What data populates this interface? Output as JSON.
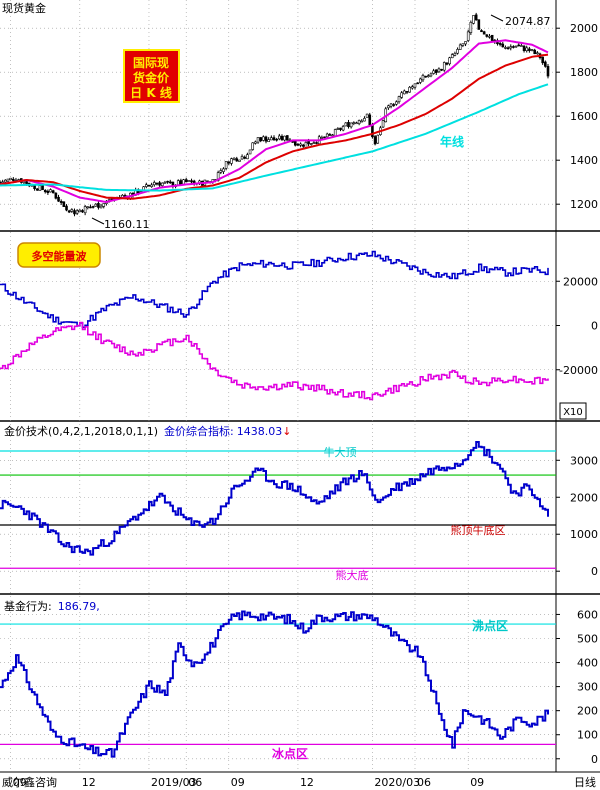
{
  "window": {
    "instrument": "现货黄金",
    "footer_source": "威尔鑫咨询",
    "period": "日线"
  },
  "colors": {
    "background": "#ffffff",
    "grid": "#9a9a9a",
    "candle": "#000000",
    "ma_red": "#dd0000",
    "ma_magenta": "#e000e0",
    "ma_cyan": "#00e0e0",
    "line_blue": "#0000cc",
    "badge_red": "#e10000",
    "badge_yellow": "#ffee00",
    "green_level": "#00c000"
  },
  "panels": {
    "price": {
      "badge": [
        "国际现",
        "货金价",
        "日 K 线"
      ],
      "high_label": "2074.87",
      "low_label": "1160.11",
      "year_line_label": "年线"
    },
    "flow": {
      "badge": "多空能量波",
      "scale_badge": "X10"
    },
    "tech": {
      "title": "金价技术(0,4,2,1,2018,0,1,1)",
      "indicator_label": "金价综合指标:",
      "indicator_value": "1438.03",
      "arrow": "↓",
      "level_labels": {
        "top": "牛大顶",
        "mid": "熊顶牛底区",
        "bottom": "熊大底"
      }
    },
    "fund": {
      "title": "基金行为:",
      "value": "186.79,",
      "level_labels": {
        "top": "沸点区",
        "bottom": "冰点区"
      }
    }
  },
  "chart_data": [
    {
      "type": "candlestick",
      "title": "现货黄金",
      "y_ticks": [
        1200,
        1400,
        1600,
        1800,
        2000
      ],
      "ylim": [
        1110,
        2110
      ],
      "x_ticks": [
        "09",
        "12",
        "2019/03",
        "06",
        "09",
        "12",
        "2020/03",
        "06",
        "09"
      ],
      "annotations": [
        "2074.87",
        "1160.11",
        "年线"
      ],
      "close_anchors": [
        [
          0,
          1300
        ],
        [
          6,
          1320
        ],
        [
          12,
          1285
        ],
        [
          20,
          1250
        ],
        [
          24,
          1190
        ],
        [
          28,
          1165
        ],
        [
          33,
          1185
        ],
        [
          38,
          1200
        ],
        [
          44,
          1230
        ],
        [
          52,
          1255
        ],
        [
          58,
          1300
        ],
        [
          64,
          1290
        ],
        [
          70,
          1300
        ],
        [
          75,
          1295
        ],
        [
          80,
          1310
        ],
        [
          86,
          1400
        ],
        [
          92,
          1420
        ],
        [
          97,
          1500
        ],
        [
          103,
          1495
        ],
        [
          108,
          1500
        ],
        [
          113,
          1470
        ],
        [
          119,
          1490
        ],
        [
          124,
          1510
        ],
        [
          130,
          1560
        ],
        [
          134,
          1580
        ],
        [
          138,
          1600
        ],
        [
          141,
          1470
        ],
        [
          145,
          1620
        ],
        [
          150,
          1690
        ],
        [
          156,
          1750
        ],
        [
          160,
          1780
        ],
        [
          165,
          1810
        ],
        [
          170,
          1870
        ],
        [
          175,
          1940
        ],
        [
          178,
          2050
        ],
        [
          180,
          2000
        ],
        [
          184,
          1960
        ],
        [
          189,
          1910
        ],
        [
          194,
          1920
        ],
        [
          199,
          1900
        ],
        [
          203,
          1870
        ],
        [
          206,
          1790
        ]
      ],
      "moving_averages": [
        {
          "color": "magenta",
          "anchors": [
            [
              0,
              1290
            ],
            [
              10,
              1310
            ],
            [
              20,
              1280
            ],
            [
              30,
              1230
            ],
            [
              40,
              1210
            ],
            [
              50,
              1240
            ],
            [
              60,
              1275
            ],
            [
              70,
              1290
            ],
            [
              80,
              1300
            ],
            [
              90,
              1360
            ],
            [
              100,
              1450
            ],
            [
              110,
              1490
            ],
            [
              120,
              1490
            ],
            [
              130,
              1520
            ],
            [
              140,
              1560
            ],
            [
              150,
              1640
            ],
            [
              160,
              1730
            ],
            [
              170,
              1820
            ],
            [
              180,
              1930
            ],
            [
              190,
              1945
            ],
            [
              200,
              1925
            ],
            [
              206,
              1890
            ]
          ]
        },
        {
          "color": "red",
          "anchors": [
            [
              0,
              1290
            ],
            [
              10,
              1310
            ],
            [
              20,
              1300
            ],
            [
              30,
              1260
            ],
            [
              40,
              1230
            ],
            [
              50,
              1225
            ],
            [
              60,
              1240
            ],
            [
              70,
              1270
            ],
            [
              80,
              1285
            ],
            [
              90,
              1320
            ],
            [
              100,
              1390
            ],
            [
              110,
              1440
            ],
            [
              120,
              1470
            ],
            [
              130,
              1490
            ],
            [
              140,
              1520
            ],
            [
              150,
              1560
            ],
            [
              160,
              1610
            ],
            [
              170,
              1680
            ],
            [
              180,
              1770
            ],
            [
              190,
              1830
            ],
            [
              200,
              1870
            ],
            [
              206,
              1880
            ]
          ]
        },
        {
          "color": "cyan",
          "label": "年线",
          "anchors": [
            [
              0,
              1285
            ],
            [
              20,
              1290
            ],
            [
              40,
              1265
            ],
            [
              60,
              1262
            ],
            [
              80,
              1272
            ],
            [
              100,
              1330
            ],
            [
              120,
              1385
            ],
            [
              140,
              1440
            ],
            [
              160,
              1520
            ],
            [
              180,
              1620
            ],
            [
              195,
              1700
            ],
            [
              206,
              1745
            ]
          ]
        }
      ]
    },
    {
      "type": "line",
      "title": "多空能量波",
      "y_ticks": [
        -20000,
        0,
        20000
      ],
      "ylim": [
        -40000,
        40000
      ],
      "scale_note": "X10",
      "series": [
        {
          "color": "blue",
          "anchors": [
            [
              0,
              18000
            ],
            [
              10,
              10000
            ],
            [
              20,
              3000
            ],
            [
              30,
              0
            ],
            [
              40,
              8000
            ],
            [
              50,
              13000
            ],
            [
              60,
              9000
            ],
            [
              70,
              5000
            ],
            [
              80,
              20000
            ],
            [
              90,
              27000
            ],
            [
              100,
              28000
            ],
            [
              110,
              27000
            ],
            [
              120,
              28500
            ],
            [
              130,
              31000
            ],
            [
              140,
              32000
            ],
            [
              150,
              28000
            ],
            [
              160,
              24000
            ],
            [
              170,
              22000
            ],
            [
              180,
              26000
            ],
            [
              190,
              24000
            ],
            [
              200,
              25000
            ],
            [
              206,
              24500
            ]
          ]
        },
        {
          "color": "magenta",
          "anchors": [
            [
              0,
              -20000
            ],
            [
              10,
              -10000
            ],
            [
              20,
              -3000
            ],
            [
              30,
              0
            ],
            [
              40,
              -8000
            ],
            [
              50,
              -13000
            ],
            [
              60,
              -9000
            ],
            [
              70,
              -5000
            ],
            [
              80,
              -20000
            ],
            [
              90,
              -27000
            ],
            [
              100,
              -28000
            ],
            [
              110,
              -27000
            ],
            [
              120,
              -28500
            ],
            [
              130,
              -31000
            ],
            [
              140,
              -32000
            ],
            [
              150,
              -28000
            ],
            [
              160,
              -24000
            ],
            [
              170,
              -22000
            ],
            [
              180,
              -26000
            ],
            [
              190,
              -24000
            ],
            [
              200,
              -25000
            ],
            [
              206,
              -24500
            ]
          ]
        }
      ]
    },
    {
      "type": "line",
      "title": "金价技术(0,4,2,1,2018,0,1,1)",
      "y_ticks": [
        0,
        1000,
        2000,
        3000
      ],
      "ylim": [
        -400,
        3900
      ],
      "levels": [
        {
          "name": "牛大顶",
          "value": 3250,
          "color": "cyan"
        },
        {
          "name": "green",
          "value": 2600,
          "color": "green"
        },
        {
          "name": "熊顶牛底区",
          "value": 1250,
          "color": "black"
        },
        {
          "name": "熊大底",
          "value": 80,
          "color": "magenta"
        }
      ],
      "series": [
        {
          "name": "金价综合指标",
          "color": "blue",
          "anchors": [
            [
              0,
              1800
            ],
            [
              8,
              1700
            ],
            [
              15,
              1300
            ],
            [
              24,
              700
            ],
            [
              33,
              500
            ],
            [
              42,
              900
            ],
            [
              52,
              1550
            ],
            [
              60,
              2000
            ],
            [
              65,
              1700
            ],
            [
              72,
              1250
            ],
            [
              80,
              1350
            ],
            [
              88,
              2250
            ],
            [
              97,
              2700
            ],
            [
              103,
              2400
            ],
            [
              111,
              2250
            ],
            [
              119,
              1800
            ],
            [
              124,
              2100
            ],
            [
              130,
              2450
            ],
            [
              136,
              2650
            ],
            [
              142,
              1850
            ],
            [
              148,
              2250
            ],
            [
              155,
              2450
            ],
            [
              161,
              2700
            ],
            [
              167,
              2850
            ],
            [
              173,
              2950
            ],
            [
              178,
              3450
            ],
            [
              183,
              3200
            ],
            [
              188,
              2800
            ],
            [
              193,
              2100
            ],
            [
              197,
              2250
            ],
            [
              202,
              2000
            ],
            [
              206,
              1438
            ]
          ]
        }
      ]
    },
    {
      "type": "step",
      "title": "基金行为",
      "y_ticks": [
        0,
        100,
        200,
        300,
        400,
        500,
        600
      ],
      "ylim": [
        -30,
        660
      ],
      "levels": [
        {
          "name": "沸点区",
          "value": 560,
          "color": "cyan"
        },
        {
          "name": "冰点区",
          "value": 60,
          "color": "magenta"
        }
      ],
      "series": [
        {
          "name": "基金行为",
          "color": "blue",
          "anchors": [
            [
              0,
              300
            ],
            [
              6,
              420
            ],
            [
              12,
              280
            ],
            [
              20,
              100
            ],
            [
              28,
              60
            ],
            [
              35,
              30
            ],
            [
              42,
              20
            ],
            [
              48,
              160
            ],
            [
              56,
              310
            ],
            [
              62,
              270
            ],
            [
              67,
              470
            ],
            [
              72,
              400
            ],
            [
              77,
              430
            ],
            [
              82,
              520
            ],
            [
              88,
              595
            ],
            [
              94,
              600
            ],
            [
              101,
              590
            ],
            [
              108,
              580
            ],
            [
              114,
              540
            ],
            [
              120,
              590
            ],
            [
              127,
              590
            ],
            [
              133,
              595
            ],
            [
              140,
              590
            ],
            [
              145,
              540
            ],
            [
              151,
              480
            ],
            [
              157,
              440
            ],
            [
              162,
              300
            ],
            [
              165,
              180
            ],
            [
              170,
              60
            ],
            [
              174,
              200
            ],
            [
              179,
              180
            ],
            [
              184,
              140
            ],
            [
              188,
              90
            ],
            [
              195,
              170
            ],
            [
              200,
              150
            ],
            [
              206,
              187
            ]
          ]
        }
      ]
    }
  ]
}
